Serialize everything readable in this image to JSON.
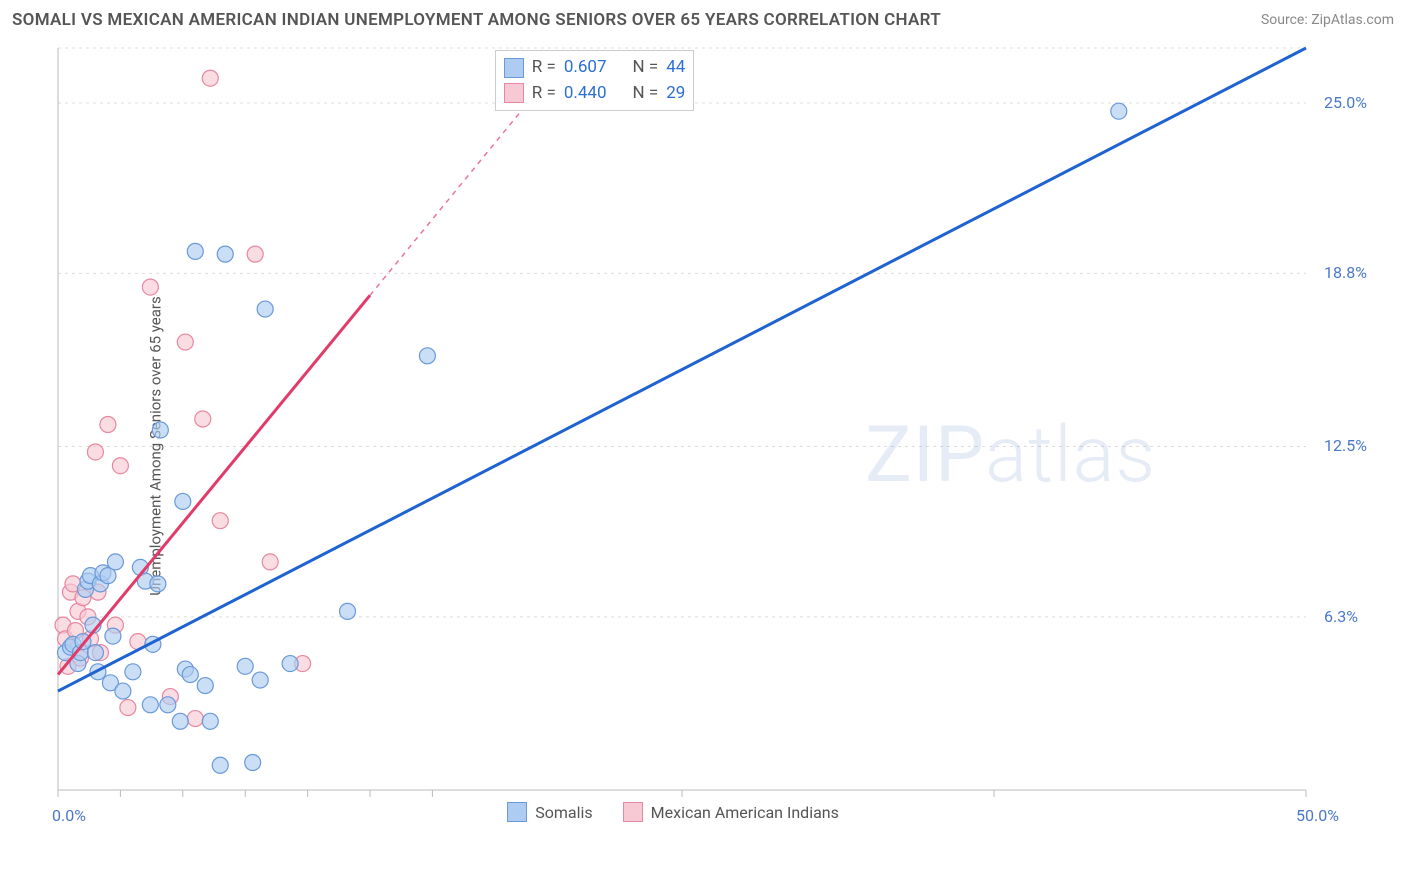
{
  "title": "SOMALI VS MEXICAN AMERICAN INDIAN UNEMPLOYMENT AMONG SENIORS OVER 65 YEARS CORRELATION CHART",
  "source": "Source: ZipAtlas.com",
  "ylabel": "Unemployment Among Seniors over 65 years",
  "watermark_a": "ZIP",
  "watermark_b": "atlas",
  "chart": {
    "type": "scatter",
    "background_color": "#ffffff",
    "grid_color": "#dcdcdc",
    "axis_color": "#bbbbbb",
    "xlim": [
      0,
      50
    ],
    "ylim": [
      0,
      27
    ],
    "y_ticks": [
      {
        "v": 6.3,
        "label": "6.3%"
      },
      {
        "v": 12.5,
        "label": "12.5%"
      },
      {
        "v": 18.8,
        "label": "18.8%"
      },
      {
        "v": 25.0,
        "label": "25.0%"
      }
    ],
    "x_ticks_minor": [
      0,
      2.5,
      5,
      7.5,
      10,
      12.5,
      15,
      25,
      37.5,
      50
    ],
    "origin_label": "0.0%",
    "x_max_label": "50.0%",
    "point_radius": 8,
    "series": [
      {
        "name": "Somalis",
        "fill": "#aeccf1",
        "stroke": "#6a99d8",
        "R": "0.607",
        "N": "44",
        "trend_color": "#1e63d0",
        "trend_width": 3,
        "trend": {
          "x1": 0,
          "y1": 3.6,
          "x2": 50,
          "y2": 27.0
        },
        "points": [
          [
            0.3,
            5.0
          ],
          [
            0.5,
            5.2
          ],
          [
            0.6,
            5.3
          ],
          [
            0.8,
            4.6
          ],
          [
            0.9,
            5.0
          ],
          [
            1.0,
            5.4
          ],
          [
            1.1,
            7.3
          ],
          [
            1.2,
            7.6
          ],
          [
            1.3,
            7.8
          ],
          [
            1.4,
            6.0
          ],
          [
            1.5,
            5.0
          ],
          [
            1.6,
            4.3
          ],
          [
            1.7,
            7.5
          ],
          [
            1.8,
            7.9
          ],
          [
            2.0,
            7.8
          ],
          [
            2.1,
            3.9
          ],
          [
            2.2,
            5.6
          ],
          [
            2.3,
            8.3
          ],
          [
            2.6,
            3.6
          ],
          [
            3.0,
            4.3
          ],
          [
            3.3,
            8.1
          ],
          [
            3.5,
            7.6
          ],
          [
            3.7,
            3.1
          ],
          [
            3.8,
            5.3
          ],
          [
            4.0,
            7.5
          ],
          [
            4.1,
            13.1
          ],
          [
            4.4,
            3.1
          ],
          [
            4.9,
            2.5
          ],
          [
            5.0,
            10.5
          ],
          [
            5.1,
            4.4
          ],
          [
            5.3,
            4.2
          ],
          [
            5.5,
            19.6
          ],
          [
            5.9,
            3.8
          ],
          [
            6.1,
            2.5
          ],
          [
            6.5,
            0.9
          ],
          [
            6.7,
            19.5
          ],
          [
            7.5,
            4.5
          ],
          [
            7.8,
            1.0
          ],
          [
            8.1,
            4.0
          ],
          [
            8.3,
            17.5
          ],
          [
            9.3,
            4.6
          ],
          [
            11.6,
            6.5
          ],
          [
            14.8,
            15.8
          ],
          [
            42.5,
            24.7
          ]
        ]
      },
      {
        "name": "Mexican American Indians",
        "fill": "#f7c9d4",
        "stroke": "#e887a0",
        "R": "0.440",
        "N": "29",
        "trend_color": "#e23b6a",
        "trend_width": 3,
        "trend": {
          "x1": 0,
          "y1": 4.2,
          "x2": 12.5,
          "y2": 18.0
        },
        "trend_dashed_ext": {
          "x1": 12.5,
          "y1": 18.0,
          "x2": 19.0,
          "y2": 25.2
        },
        "points": [
          [
            0.2,
            6.0
          ],
          [
            0.3,
            5.5
          ],
          [
            0.4,
            4.5
          ],
          [
            0.5,
            7.2
          ],
          [
            0.6,
            7.5
          ],
          [
            0.7,
            5.8
          ],
          [
            0.8,
            6.5
          ],
          [
            0.9,
            4.8
          ],
          [
            1.0,
            7.0
          ],
          [
            1.2,
            6.3
          ],
          [
            1.3,
            5.5
          ],
          [
            1.5,
            12.3
          ],
          [
            1.6,
            7.2
          ],
          [
            1.7,
            5.0
          ],
          [
            2.0,
            13.3
          ],
          [
            2.3,
            6.0
          ],
          [
            2.5,
            11.8
          ],
          [
            2.8,
            3.0
          ],
          [
            3.2,
            5.4
          ],
          [
            3.7,
            18.3
          ],
          [
            4.5,
            3.4
          ],
          [
            5.1,
            16.3
          ],
          [
            5.5,
            2.6
          ],
          [
            5.8,
            13.5
          ],
          [
            6.1,
            25.9
          ],
          [
            6.5,
            9.8
          ],
          [
            7.9,
            19.5
          ],
          [
            8.5,
            8.3
          ],
          [
            9.8,
            4.6
          ]
        ]
      }
    ],
    "legend": {
      "R_label": "R =",
      "N_label": "N ="
    }
  }
}
